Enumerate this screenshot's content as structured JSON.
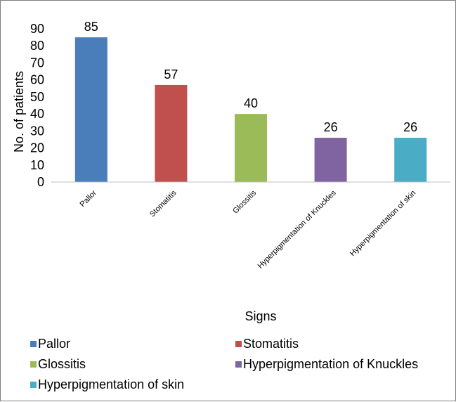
{
  "chart_data": {
    "type": "bar",
    "title": "",
    "xlabel": "Signs",
    "ylabel": "No. of patients",
    "categories": [
      "Pallor",
      "Stomatitis",
      "Glossitis",
      "Hyperpigmentation of Knuckles",
      "Hyperpigmentation of skin"
    ],
    "values": [
      85,
      57,
      40,
      26,
      26
    ],
    "colors": [
      "#4a7ebb",
      "#c0504d",
      "#9bbb59",
      "#8064a2",
      "#4bacc6"
    ],
    "ylim": [
      0,
      90
    ],
    "yticks": [
      0,
      10,
      20,
      30,
      40,
      50,
      60,
      70,
      80,
      90
    ],
    "grid": false,
    "legend_position": "bottom",
    "data_labels": true
  }
}
